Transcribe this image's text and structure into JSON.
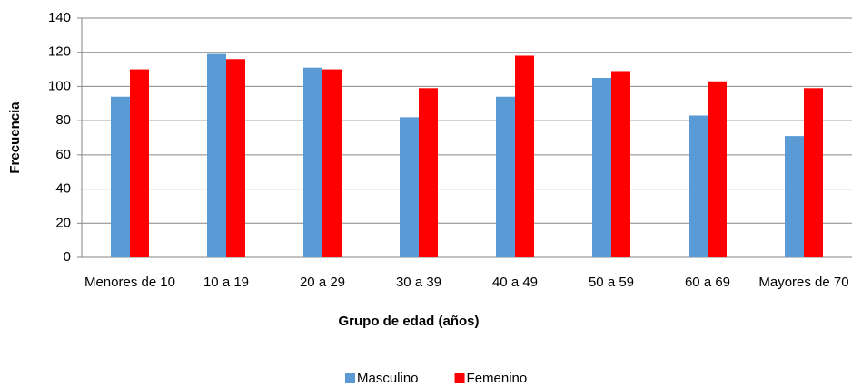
{
  "chart_data": {
    "type": "bar",
    "x_label": "Grupo de edad (años)",
    "y_label": "Frecuencia",
    "categories": [
      "Menores de 10",
      "10 a 19",
      "20 a 29",
      "30 a 39",
      "40 a 49",
      "50 a 59",
      "60 a 69",
      "Mayores de 70"
    ],
    "series": [
      {
        "name": "Masculino",
        "color": "#5b9bd5",
        "values": [
          94,
          119,
          111,
          82,
          94,
          105,
          83,
          71
        ]
      },
      {
        "name": "Femenino",
        "color": "#ff0000",
        "values": [
          110,
          116,
          110,
          99,
          118,
          109,
          103,
          99
        ]
      }
    ],
    "ylim": [
      0,
      140
    ],
    "yticks": [
      0,
      20,
      40,
      60,
      80,
      100,
      120,
      140
    ],
    "grid": true,
    "legend": "bottom"
  }
}
